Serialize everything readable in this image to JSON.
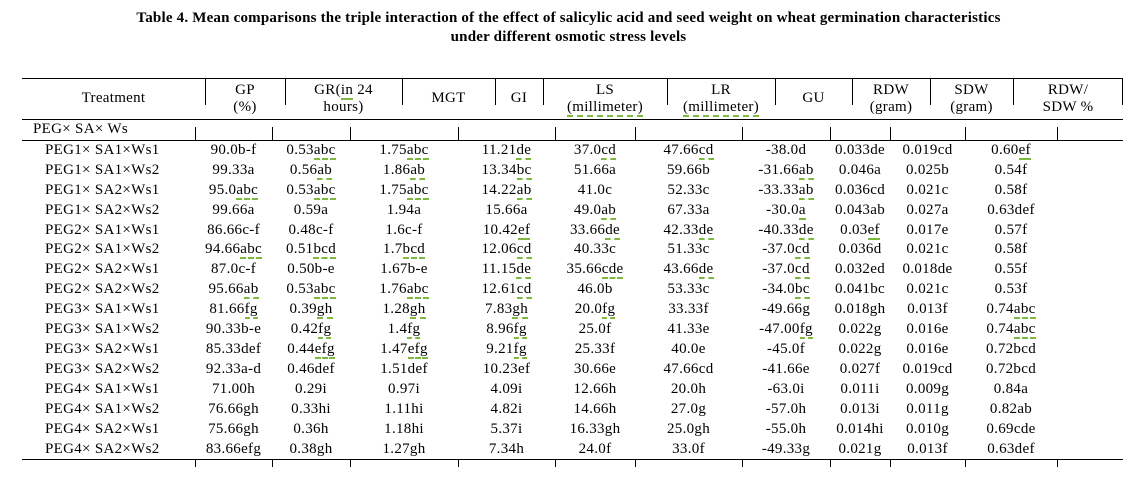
{
  "colors": {
    "squiggle": "#7cb93e",
    "text": "#000000",
    "background": "#ffffff"
  },
  "caption": {
    "line1": "Table 4. Mean comparisons the triple interaction of the effect of salicylic acid and seed weight on wheat germination characteristics",
    "line2": "under different osmotic stress levels"
  },
  "table": {
    "columns": [
      "Treatment",
      "GP\n(%)",
      "GR([in] 24\nhours)",
      "MGT",
      "GI",
      "LS\n[(millimeter)]",
      "LR\n[(millimeter)]",
      "GU",
      "RDW\n(gram)",
      "SDW\n(gram)",
      "RDW/\nSDW %"
    ],
    "group_header": "PEG× SA× Ws",
    "rows": [
      [
        "PEG1× SA1×Ws1",
        "90.0b-f",
        "0.53[abc]",
        "1.75[abc]",
        "11.21[de]",
        "37.0[cd]",
        "47.66[cd]",
        "-38.0d",
        "0.033de",
        "0.019cd",
        "0.60[ef]"
      ],
      [
        "PEG1× SA1×Ws2",
        "99.33a",
        "0.56[ab]",
        "1.86[ab]",
        "13.34[bc]",
        "51.66a",
        "59.66b",
        "-31.66[ab]",
        "0.046a",
        "0.025b",
        "0.54f"
      ],
      [
        "PEG1× SA2×Ws1",
        "95.0[abc]",
        "0.53[abc]",
        "1.75[abc]",
        "14.22[ab]",
        "41.0c",
        "52.33c",
        "-33.33[ab]",
        "0.036cd",
        "0.021c",
        "0.58f"
      ],
      [
        "PEG1× SA2×Ws2",
        "99.66a",
        "0.59a",
        "1.94a",
        "15.66a",
        "49.0[ab]",
        "67.33a",
        "-30.0[a]",
        "0.043ab",
        "0.027a",
        "0.63def"
      ],
      [
        "PEG2× SA1×Ws1",
        "86.66c-f",
        "0.48c-f",
        "1.6c-f",
        "10.42[ef]",
        "33.66[de]",
        "42.33[de]",
        "-40.33[de]",
        "0.03[ef]",
        "0.017e",
        "0.57f"
      ],
      [
        "PEG2× SA1×Ws2",
        "94.66[abc]",
        "0.51[bcd]",
        "1.7[bcd]",
        "12.06[cd]",
        "40.33c",
        "51.33c",
        "-37.0[cd]",
        "0.036d",
        "0.021c",
        "0.58f"
      ],
      [
        "PEG2× SA2×Ws1",
        "87.0c-f",
        "0.50b-e",
        "1.67b-e",
        "11.15[de]",
        "35.66[cde]",
        "43.66[de]",
        "-37.0[cd]",
        "0.032ed",
        "0.018de",
        "0.55f"
      ],
      [
        "PEG2× SA2×Ws2",
        "95.66[ab]",
        "0.53[abc]",
        "1.76[abc]",
        "12.61[cd]",
        "46.0b",
        "53.33c",
        "-34.0[bc]",
        "0.041bc",
        "0.021c",
        "0.53f"
      ],
      [
        "PEG3× SA1×Ws1",
        "81.66[fg]",
        "0.39[gh]",
        "1.28[gh]",
        "7.83[gh]",
        "20.0[fg]",
        "33.33f",
        "-49.66g",
        "0.018gh",
        "0.013f",
        "0.74[abc]"
      ],
      [
        "PEG3× SA1×Ws2",
        "90.33b-e",
        "0.42[fg]",
        "1.4[fg]",
        "8.96[fg]",
        "25.0f",
        "41.33e",
        "-47.00[fg]",
        "0.022g",
        "0.016e",
        "0.74[abc]"
      ],
      [
        "PEG3× SA2×Ws1",
        "85.33def",
        "0.44[efg]",
        "1.47[efg]",
        "9.21[fg]",
        "25.33f",
        "40.0e",
        "-45.0f",
        "0.022g",
        "0.016e",
        "0.72bcd"
      ],
      [
        "PEG3× SA2×Ws2",
        "92.33a-d",
        "0.46def",
        "1.51def",
        "10.23ef",
        "30.66e",
        "47.66cd",
        "-41.66e",
        "0.027f",
        "0.019cd",
        "0.72bcd"
      ],
      [
        "PEG4× SA1×Ws1",
        "71.00h",
        "0.29i",
        "0.97i",
        "4.09i",
        "12.66h",
        "20.0h",
        "-63.0i",
        "0.011i",
        "0.009g",
        "0.84a"
      ],
      [
        "PEG4× SA1×Ws2",
        "76.66gh",
        "0.33hi",
        "1.11hi",
        "4.82i",
        "14.66h",
        "27.0g",
        "-57.0h",
        "0.013i",
        "0.011g",
        "0.82ab"
      ],
      [
        "PEG4× SA2×Ws1",
        "75.66gh",
        "0.36h",
        "1.18hi",
        "5.37i",
        "16.33gh",
        "25.0gh",
        "-55.0h",
        "0.014hi",
        "0.010g",
        "0.69cde"
      ],
      [
        "PEG4× SA2×Ws2",
        "83.66efg",
        "0.38gh",
        "1.27gh",
        "7.34h",
        "24.0f",
        "33.0f",
        "-49.33g",
        "0.021g",
        "0.013f",
        "0.63def"
      ]
    ]
  }
}
